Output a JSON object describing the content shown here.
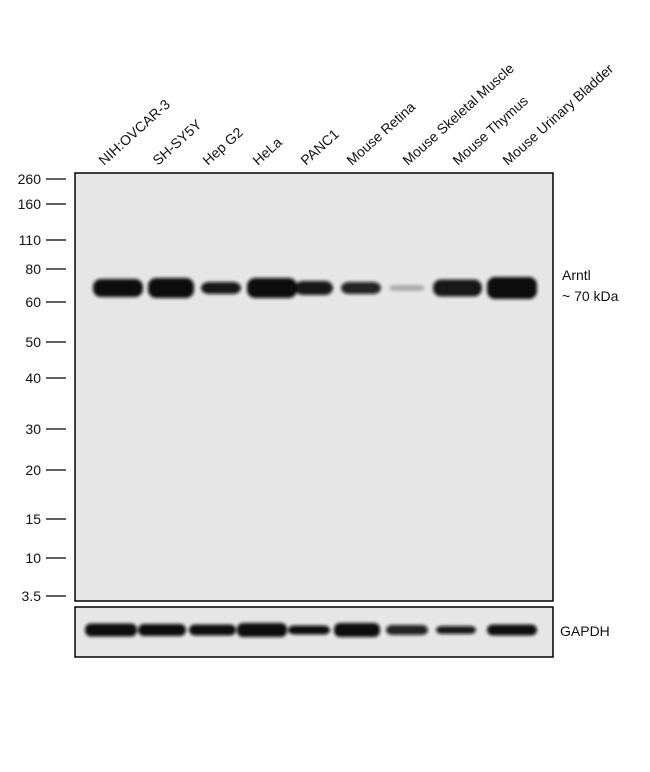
{
  "lanes": [
    "NIH:OVCAR-3",
    "SH-SY5Y",
    "Hep G2",
    "HeLa",
    "PANC1",
    "Mouse Retina",
    "Mouse Skeletal Muscle",
    "Mouse Thymus",
    "Mouse Urinary Bladder"
  ],
  "markers": [
    "260",
    "160",
    "110",
    "80",
    "60",
    "50",
    "40",
    "30",
    "20",
    "15",
    "10",
    "3.5"
  ],
  "target": {
    "name": "Arntl",
    "size": "~ 70 kDa"
  },
  "loading_control": "GAPDH"
}
